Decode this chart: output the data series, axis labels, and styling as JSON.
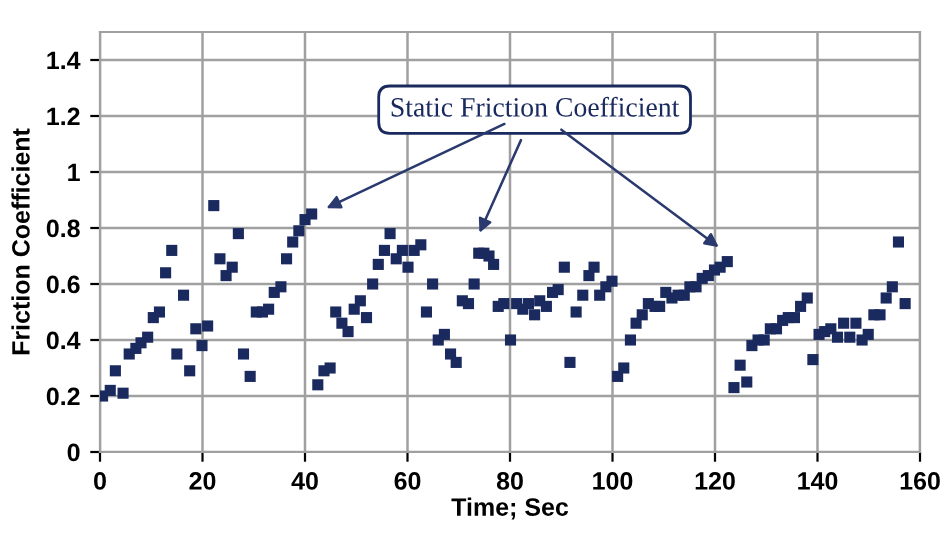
{
  "chart_data": {
    "type": "scatter",
    "xlabel": "Time; Sec",
    "ylabel": "Friction Coefficient",
    "xlim": [
      0,
      160
    ],
    "ylim": [
      0,
      1.5
    ],
    "xticks": [
      0,
      20,
      40,
      60,
      80,
      100,
      120,
      140,
      160
    ],
    "yticks": [
      0,
      0.2,
      0.4,
      0.6,
      0.8,
      1,
      1.2,
      1.4
    ],
    "grid": true,
    "marker": "square",
    "annotations": [
      "Static Friction Coefficient"
    ],
    "series": [
      {
        "color": "#1a2a5e",
        "x": [
          0.5,
          2,
          3,
          4.5,
          5.7,
          7,
          8,
          9.3,
          10.4,
          11.6,
          12.8,
          14,
          15,
          16.3,
          17.5,
          18.7,
          19.9,
          21,
          22.2,
          23.4,
          24.6,
          25.8,
          27,
          28,
          29.3,
          30.5,
          31.7,
          32.9,
          34,
          35.3,
          36.4,
          37.6,
          38.8,
          40,
          41.3,
          42.5,
          43.7,
          44.9,
          46,
          47.2,
          48.4,
          49.6,
          50.8,
          52,
          53.2,
          54.3,
          55.5,
          56.6,
          57.8,
          59,
          60.1,
          61.3,
          62.6,
          63.7,
          64.9,
          66,
          67.2,
          68.4,
          69.5,
          70.7,
          71.9,
          73,
          73.9,
          74.9,
          75.9,
          76.8,
          77.7,
          78.8,
          80.1,
          81.3,
          82.5,
          83.6,
          84.8,
          85.8,
          87.1,
          88.3,
          89.4,
          90.6,
          91.7,
          92.9,
          94.2,
          95.4,
          96.4,
          97.5,
          98.7,
          99.9,
          101,
          102.2,
          103.5,
          104.6,
          105.8,
          107,
          108.3,
          109.2,
          110.4,
          111.6,
          112.8,
          114,
          115.1,
          116.3,
          117.5,
          118.7,
          119.9,
          121,
          122.4,
          123.7,
          124.9,
          126.2,
          127.2,
          128.4,
          129.6,
          130.8,
          132,
          133.2,
          134.3,
          135.5,
          136.7,
          138,
          139.1,
          140.3,
          141.4,
          142.6,
          143.9,
          145.1,
          146.3,
          147.5,
          148.7,
          149.9,
          151,
          152.2,
          153.4,
          154.6,
          155.8,
          157.1
        ],
        "values": [
          0.2,
          0.22,
          0.29,
          0.21,
          0.35,
          0.37,
          0.39,
          0.41,
          0.48,
          0.5,
          0.64,
          0.72,
          0.35,
          0.56,
          0.29,
          0.44,
          0.38,
          0.45,
          0.88,
          0.69,
          0.63,
          0.66,
          0.78,
          0.35,
          0.27,
          0.5,
          0.5,
          0.51,
          0.57,
          0.59,
          0.69,
          0.75,
          0.79,
          0.83,
          0.85,
          0.24,
          0.29,
          0.3,
          0.5,
          0.46,
          0.43,
          0.51,
          0.54,
          0.48,
          0.6,
          0.67,
          0.72,
          0.78,
          0.69,
          0.72,
          0.66,
          0.72,
          0.74,
          0.5,
          0.6,
          0.4,
          0.42,
          0.35,
          0.32,
          0.54,
          0.53,
          0.6,
          0.71,
          0.71,
          0.7,
          0.67,
          0.52,
          0.53,
          0.4,
          0.53,
          0.51,
          0.53,
          0.49,
          0.54,
          0.52,
          0.57,
          0.58,
          0.66,
          0.32,
          0.5,
          0.56,
          0.63,
          0.66,
          0.56,
          0.59,
          0.61,
          0.27,
          0.3,
          0.4,
          0.46,
          0.49,
          0.53,
          0.52,
          0.52,
          0.57,
          0.55,
          0.56,
          0.56,
          0.59,
          0.59,
          0.62,
          0.63,
          0.65,
          0.66,
          0.68,
          0.23,
          0.31,
          0.25,
          0.38,
          0.4,
          0.4,
          0.44,
          0.44,
          0.47,
          0.48,
          0.48,
          0.52,
          0.55,
          0.33,
          0.42,
          0.43,
          0.44,
          0.41,
          0.46,
          0.41,
          0.46,
          0.4,
          0.42,
          0.49,
          0.49,
          0.55,
          0.59,
          0.75,
          0.53
        ]
      }
    ]
  }
}
